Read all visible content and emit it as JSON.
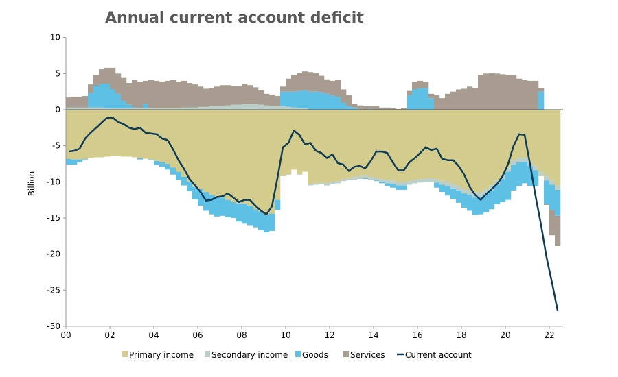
{
  "chart_data": {
    "type": "bar",
    "subtype": "stacked-bar-with-line",
    "title": "Annual current account deficit",
    "xlabel": "",
    "ylabel": "Billion",
    "ylim": [
      -30,
      10
    ],
    "yticks": [
      "10",
      "5",
      "0",
      "-5",
      "-10",
      "-15",
      "-20",
      "-25",
      "-30"
    ],
    "ytick_values": [
      10,
      5,
      0,
      -5,
      -10,
      -15,
      -20,
      -25,
      -30
    ],
    "xticks": [
      "00",
      "02",
      "04",
      "06",
      "08",
      "10",
      "12",
      "14",
      "16",
      "18",
      "20",
      "22"
    ],
    "xtick_years": [
      2000,
      2002,
      2004,
      2006,
      2008,
      2010,
      2012,
      2014,
      2016,
      2018,
      2020,
      2022
    ],
    "x_start": "2000Q1",
    "x_end": "2022Q2",
    "frequency": "quarterly",
    "grid": false,
    "legend_position": "bottom",
    "legend": [
      "Primary income",
      "Secondary income",
      "Goods",
      "Services",
      "Current account"
    ],
    "colors": {
      "primary": "#d3cc8c",
      "secondary": "#bccfc9",
      "goods": "#5fc0e6",
      "services": "#a89c91",
      "current": "#0e3b57"
    },
    "series": [
      {
        "name": "Primary income",
        "values": [
          -6.8,
          -6.9,
          -6.9,
          -6.8,
          -6.7,
          -6.6,
          -6.6,
          -6.5,
          -6.4,
          -6.4,
          -6.5,
          -6.5,
          -6.6,
          -6.7,
          -6.8,
          -6.9,
          -7.1,
          -7.3,
          -7.5,
          -8.0,
          -8.6,
          -9.3,
          -10.0,
          -10.7,
          -11.0,
          -11.4,
          -11.8,
          -12.0,
          -12.2,
          -12.5,
          -12.8,
          -13.0,
          -13.0,
          -13.3,
          -13.8,
          -14.2,
          -14.6,
          -14.4,
          -12.5,
          -9.2,
          -9.0,
          -8.3,
          -9.0,
          -8.6,
          -10.3,
          -10.2,
          -10.1,
          -10.2,
          -10.0,
          -9.9,
          -9.6,
          -9.5,
          -9.3,
          -9.2,
          -9.1,
          -9.3,
          -9.4,
          -9.6,
          -9.7,
          -9.8,
          -10.0,
          -10.0,
          -9.9,
          -9.7,
          -9.6,
          -9.5,
          -9.5,
          -9.6,
          -9.8,
          -10.0,
          -10.3,
          -10.6,
          -11.0,
          -11.2,
          -11.5,
          -11.4,
          -11.0,
          -10.5,
          -9.8,
          -9.0,
          -8.0,
          -7.0,
          -6.7,
          -6.6,
          -7.2,
          -7.8,
          -8.6,
          -9.2,
          -9.8,
          -10.5
        ]
      },
      {
        "name": "Secondary income",
        "values": [
          0.3,
          0.3,
          0.3,
          0.3,
          0.3,
          0.3,
          0.3,
          0.2,
          0.2,
          0.2,
          0.2,
          0.2,
          0.2,
          0.2,
          0.2,
          0.2,
          0.2,
          0.2,
          0.2,
          0.2,
          0.2,
          0.3,
          0.3,
          0.3,
          0.4,
          0.4,
          0.5,
          0.5,
          0.5,
          0.6,
          0.7,
          0.7,
          0.8,
          0.8,
          0.8,
          0.7,
          0.6,
          0.5,
          0.5,
          0.5,
          0.4,
          0.3,
          0.2,
          0.2,
          -0.2,
          -0.2,
          -0.2,
          -0.3,
          -0.3,
          -0.3,
          -0.3,
          -0.3,
          -0.4,
          -0.4,
          -0.4,
          -0.4,
          -0.4,
          -0.4,
          -0.5,
          -0.5,
          -0.5,
          -0.5,
          -0.5,
          -0.5,
          -0.5,
          -0.5,
          -0.5,
          -0.5,
          -0.6,
          -0.6,
          -0.6,
          -0.6,
          -0.6,
          -0.6,
          -0.7,
          -0.7,
          -0.7,
          -0.7,
          -0.6,
          -0.6,
          -0.6,
          -0.6,
          -0.6,
          -0.6,
          -0.6,
          -0.6,
          -0.6,
          -0.6,
          -0.6,
          -0.6
        ]
      },
      {
        "name": "Goods",
        "values": [
          -0.8,
          -0.7,
          -0.4,
          -0.1,
          2.0,
          3.0,
          3.3,
          3.4,
          2.6,
          2.0,
          1.0,
          0.5,
          0.1,
          -0.2,
          0.6,
          -0.1,
          -0.5,
          -0.6,
          -0.8,
          -1.0,
          -1.1,
          -1.2,
          -1.3,
          -1.7,
          -2.3,
          -2.6,
          -2.7,
          -2.8,
          -2.5,
          -2.4,
          -2.2,
          -2.5,
          -2.8,
          -2.7,
          -2.5,
          -2.5,
          -2.4,
          -2.4,
          -1.4,
          2.0,
          2.1,
          2.2,
          2.4,
          2.5,
          2.5,
          2.5,
          2.4,
          2.2,
          2.0,
          1.8,
          1.0,
          0.5,
          0.3,
          0.1,
          -0.1,
          0.1,
          -0.1,
          -0.2,
          -0.4,
          -0.5,
          -0.6,
          -0.6,
          2.0,
          2.8,
          3.0,
          3.0,
          1.6,
          -0.7,
          -1.0,
          -1.3,
          -1.5,
          -1.7,
          -2.0,
          -2.2,
          -2.4,
          -2.4,
          -2.5,
          -2.6,
          -2.7,
          -3.2,
          -3.9,
          -3.6,
          -3.3,
          -3.0,
          -2.8,
          -2.2,
          2.5,
          -3.3,
          -3.5,
          -3.6
        ]
      },
      {
        "name": "Services",
        "values": [
          1.4,
          1.5,
          1.5,
          1.6,
          1.2,
          1.5,
          2.0,
          2.2,
          3.0,
          2.8,
          3.2,
          3.0,
          3.8,
          3.6,
          3.2,
          3.9,
          3.8,
          3.7,
          3.8,
          3.9,
          3.7,
          3.7,
          3.4,
          3.2,
          2.8,
          2.5,
          2.5,
          2.7,
          2.9,
          2.8,
          2.6,
          2.6,
          2.8,
          2.6,
          2.3,
          2.0,
          1.6,
          1.6,
          1.4,
          0.7,
          1.8,
          2.3,
          2.5,
          2.6,
          2.7,
          2.6,
          2.3,
          2.0,
          2.0,
          2.3,
          1.8,
          1.5,
          0.5,
          0.5,
          0.5,
          0.4,
          0.5,
          0.3,
          0.3,
          0.2,
          0.1,
          0.2,
          0.6,
          1.0,
          1.0,
          0.8,
          0.6,
          2.0,
          1.6,
          2.2,
          2.5,
          2.8,
          2.9,
          3.2,
          3.0,
          4.8,
          5.0,
          5.1,
          5.0,
          4.9,
          4.8,
          4.8,
          4.3,
          4.1,
          4.0,
          4.0,
          0.5,
          -0.1,
          -3.5,
          -4.2
        ]
      },
      {
        "name": "Current account",
        "values": [
          -5.8,
          -5.7,
          -5.4,
          -4.0,
          -3.2,
          -2.5,
          -1.8,
          -1.1,
          -1.1,
          -1.7,
          -2.0,
          -2.5,
          -2.7,
          -2.5,
          -3.2,
          -3.3,
          -3.4,
          -4.0,
          -4.2,
          -5.5,
          -7.0,
          -8.2,
          -9.6,
          -10.5,
          -11.4,
          -12.6,
          -12.5,
          -12.1,
          -12.0,
          -11.6,
          -12.2,
          -12.8,
          -12.5,
          -12.5,
          -13.3,
          -14.0,
          -14.5,
          -13.4,
          -9.5,
          -5.2,
          -4.6,
          -2.9,
          -3.5,
          -4.8,
          -4.6,
          -5.7,
          -6.0,
          -6.7,
          -6.2,
          -7.4,
          -7.6,
          -8.5,
          -7.9,
          -7.8,
          -8.1,
          -7.1,
          -5.8,
          -5.8,
          -6.0,
          -7.3,
          -8.4,
          -8.4,
          -7.3,
          -6.7,
          -6.0,
          -5.2,
          -5.6,
          -5.4,
          -6.8,
          -7.0,
          -7.0,
          -7.8,
          -9.0,
          -10.7,
          -11.8,
          -12.5,
          -11.7,
          -11.0,
          -10.3,
          -9.2,
          -7.5,
          -5.0,
          -3.4,
          -3.5,
          -7.6,
          -12.0,
          -16.0,
          -20.5,
          -24.0,
          -27.8
        ]
      }
    ]
  }
}
